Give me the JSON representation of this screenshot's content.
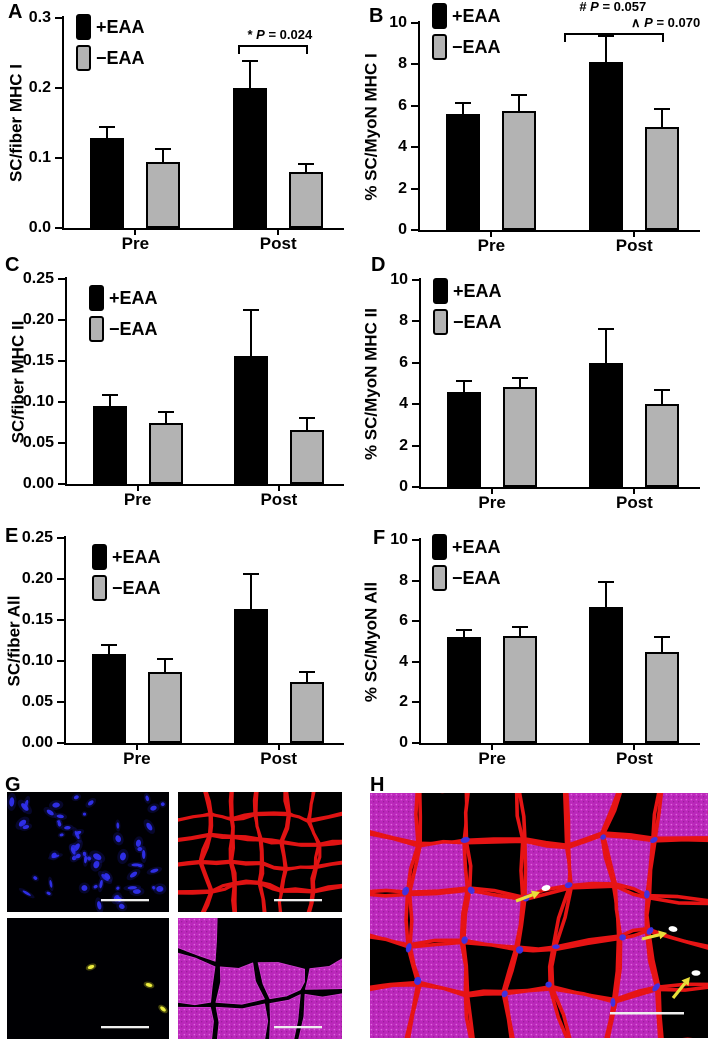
{
  "legend": {
    "items": [
      {
        "label": "+EAA",
        "swatch": "black"
      },
      {
        "label": "−EAA",
        "swatch": "gray"
      }
    ]
  },
  "colors": {
    "bar_plus": "#000000",
    "bar_minus": "#b3b3b3",
    "axis": "#000000",
    "nuclei_blue": "#3030ee",
    "laminin_red": "#e01313",
    "pax7_yellow": "#eded3f",
    "mhc_magenta": "#bb28bb",
    "arrow_yellow": "#e9df3a",
    "scalebar_white": "#efefef"
  },
  "chart_data": [
    {
      "type": "bar",
      "panel": "A",
      "ylabel": "SC/fiber MHC I",
      "categories": [
        "Pre",
        "Post"
      ],
      "yticks": [
        "0.0",
        "0.1",
        "0.2",
        "0.3"
      ],
      "ylim": [
        0,
        0.3
      ],
      "series": [
        {
          "name": "+EAA",
          "values": [
            0.128,
            0.2
          ],
          "errors": [
            0.017,
            0.038
          ]
        },
        {
          "name": "−EAA",
          "values": [
            0.095,
            0.08
          ],
          "errors": [
            0.018,
            0.012
          ]
        }
      ],
      "annotation": {
        "lines": [
          "* P = 0.024"
        ],
        "bracket_category": "Post"
      }
    },
    {
      "type": "bar",
      "panel": "B",
      "ylabel": "% SC/MyoN MHC I",
      "categories": [
        "Pre",
        "Post"
      ],
      "yticks": [
        "0",
        "2",
        "4",
        "6",
        "8",
        "10"
      ],
      "ylim": [
        0,
        10
      ],
      "series": [
        {
          "name": "+EAA",
          "values": [
            5.6,
            8.1
          ],
          "errors": [
            0.55,
            1.25
          ]
        },
        {
          "name": "−EAA",
          "values": [
            5.75,
            5.0
          ],
          "errors": [
            0.75,
            0.85
          ]
        }
      ],
      "annotation": {
        "lines": [
          "# P = 0.057",
          "∧ P = 0.070"
        ],
        "bracket_category": "Post"
      }
    },
    {
      "type": "bar",
      "panel": "C",
      "ylabel": "SC/fiber MHC II",
      "categories": [
        "Pre",
        "Post"
      ],
      "yticks": [
        "0.00",
        "0.05",
        "0.10",
        "0.15",
        "0.20",
        "0.25"
      ],
      "ylim": [
        0,
        0.25
      ],
      "series": [
        {
          "name": "+EAA",
          "values": [
            0.095,
            0.156
          ],
          "errors": [
            0.013,
            0.056
          ]
        },
        {
          "name": "−EAA",
          "values": [
            0.075,
            0.066
          ],
          "errors": [
            0.013,
            0.015
          ]
        }
      ]
    },
    {
      "type": "bar",
      "panel": "D",
      "ylabel": "% SC/MyoN MHC II",
      "categories": [
        "Pre",
        "Post"
      ],
      "yticks": [
        "0",
        "2",
        "4",
        "6",
        "8",
        "10"
      ],
      "ylim": [
        0,
        10
      ],
      "series": [
        {
          "name": "+EAA",
          "values": [
            4.6,
            6.0
          ],
          "errors": [
            0.5,
            1.65
          ]
        },
        {
          "name": "−EAA",
          "values": [
            4.85,
            4.0
          ],
          "errors": [
            0.4,
            0.7
          ]
        }
      ]
    },
    {
      "type": "bar",
      "panel": "E",
      "ylabel": "SC/fiber All",
      "categories": [
        "Pre",
        "Post"
      ],
      "yticks": [
        "0.00",
        "0.05",
        "0.10",
        "0.15",
        "0.20",
        "0.25"
      ],
      "ylim": [
        0,
        0.25
      ],
      "series": [
        {
          "name": "+EAA",
          "values": [
            0.108,
            0.163
          ],
          "errors": [
            0.012,
            0.043
          ]
        },
        {
          "name": "−EAA",
          "values": [
            0.086,
            0.074
          ],
          "errors": [
            0.016,
            0.013
          ]
        }
      ]
    },
    {
      "type": "bar",
      "panel": "F",
      "ylabel": "% SC/MyoN All",
      "categories": [
        "Pre",
        "Post"
      ],
      "yticks": [
        "0",
        "2",
        "4",
        "6",
        "8",
        "10"
      ],
      "ylim": [
        0,
        10
      ],
      "series": [
        {
          "name": "+EAA",
          "values": [
            5.2,
            6.7
          ],
          "errors": [
            0.35,
            1.25
          ]
        },
        {
          "name": "−EAA",
          "values": [
            5.25,
            4.5
          ],
          "errors": [
            0.45,
            0.7
          ]
        }
      ]
    }
  ],
  "micrographs": {
    "G": {
      "letter": "G",
      "sub_panels": [
        "dapi-nuclei-blue",
        "fiber-borders-red",
        "pax7-satellite-cells-yellow",
        "mhc-fibers-magenta"
      ]
    },
    "H": {
      "letter": "H",
      "features": [
        "merged-channels",
        "yellow-arrows-marking-satellite-cells",
        "scale-bar"
      ]
    }
  }
}
